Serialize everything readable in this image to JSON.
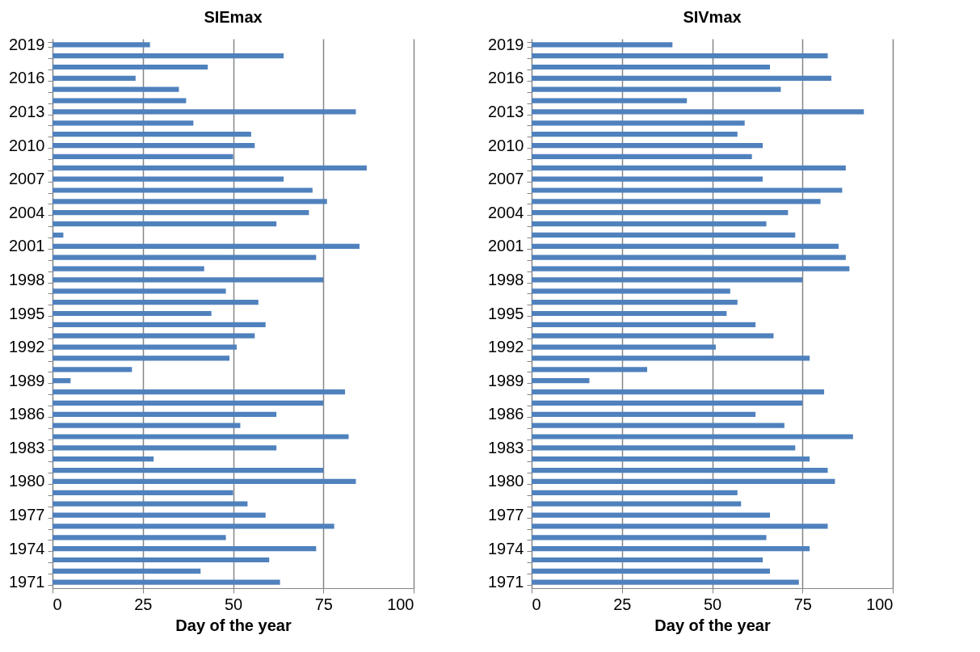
{
  "chart_data": [
    {
      "type": "bar",
      "orientation": "horizontal",
      "title": "SIEmax",
      "xlabel": "Day of the year",
      "categories": [
        "2019",
        null,
        null,
        "2016",
        null,
        null,
        "2013",
        null,
        null,
        "2010",
        null,
        null,
        "2007",
        null,
        null,
        "2004",
        null,
        null,
        "2001",
        null,
        null,
        "1998",
        null,
        null,
        "1995",
        null,
        null,
        "1992",
        null,
        null,
        "1989",
        null,
        null,
        "1986",
        null,
        null,
        "1983",
        null,
        null,
        "1980",
        null,
        null,
        "1977",
        null,
        null,
        "1974",
        null,
        null,
        "1971"
      ],
      "series": [
        {
          "color": "#4f81bd",
          "values": [
            27,
            64,
            43,
            23,
            35,
            37,
            84,
            39,
            55,
            56,
            50,
            87,
            64,
            72,
            76,
            71,
            62,
            3,
            85,
            73,
            42,
            75,
            48,
            57,
            44,
            59,
            56,
            51,
            49,
            22,
            5,
            81,
            75,
            62,
            52,
            82,
            62,
            28,
            75,
            84,
            50,
            54,
            59,
            78,
            48,
            73,
            60,
            41,
            63
          ]
        }
      ],
      "xlim": [
        0,
        100
      ],
      "xticks": [
        0,
        25,
        50,
        75,
        100
      ],
      "grid": "x"
    },
    {
      "type": "bar",
      "orientation": "horizontal",
      "title": "SIVmax",
      "xlabel": "Day of the year",
      "categories": [
        "2019",
        null,
        null,
        "2016",
        null,
        null,
        "2013",
        null,
        null,
        "2010",
        null,
        null,
        "2007",
        null,
        null,
        "2004",
        null,
        null,
        "2001",
        null,
        null,
        "1998",
        null,
        null,
        "1995",
        null,
        null,
        "1992",
        null,
        null,
        "1989",
        null,
        null,
        "1986",
        null,
        null,
        "1983",
        null,
        null,
        "1980",
        null,
        null,
        "1977",
        null,
        null,
        "1974",
        null,
        null,
        "1971"
      ],
      "series": [
        {
          "color": "#4f81bd",
          "values": [
            39,
            82,
            66,
            83,
            69,
            43,
            92,
            59,
            57,
            64,
            61,
            87,
            64,
            86,
            80,
            71,
            65,
            73,
            85,
            87,
            88,
            75,
            55,
            57,
            54,
            62,
            67,
            51,
            77,
            32,
            16,
            81,
            75,
            62,
            70,
            89,
            73,
            77,
            82,
            84,
            57,
            58,
            66,
            82,
            65,
            77,
            64,
            66,
            74
          ]
        }
      ],
      "xlim": [
        0,
        100
      ],
      "xticks": [
        0,
        25,
        50,
        75,
        100
      ],
      "grid": "x"
    }
  ]
}
